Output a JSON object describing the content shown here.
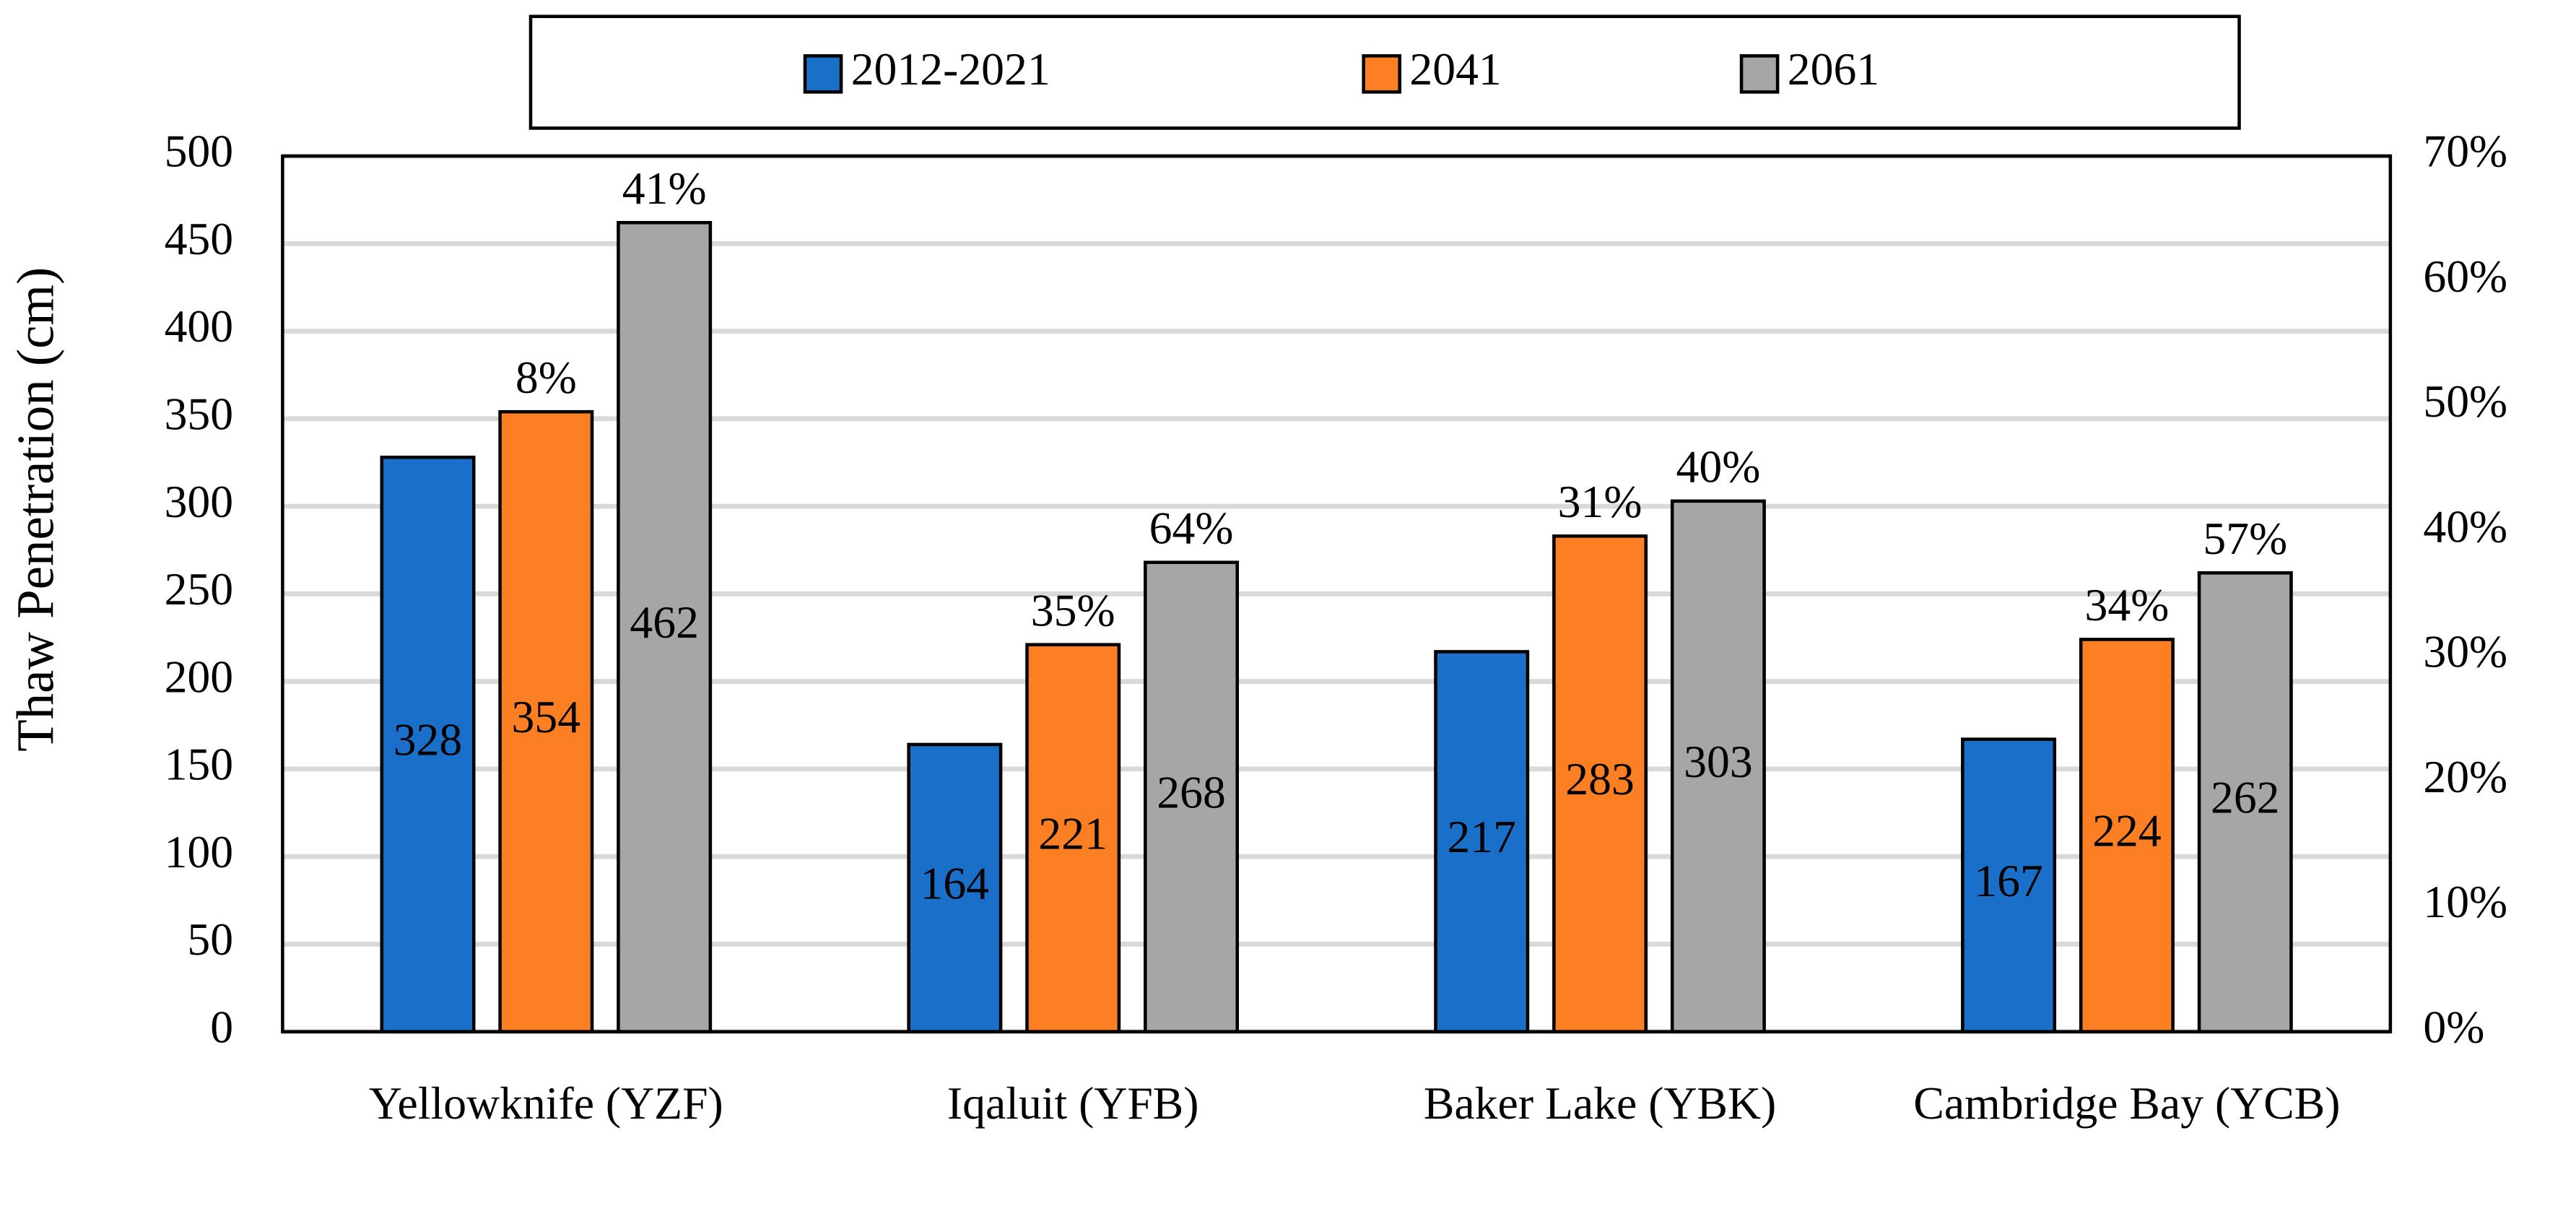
{
  "chart_data": {
    "type": "bar",
    "y_label": "Thaw Penetration (cm)",
    "categories": [
      "Yellowknife (YZF)",
      "Iqaluit (YFB)",
      "Baker Lake (YBK)",
      "Cambridge Bay (YCB)"
    ],
    "series": [
      {
        "name": "2012-2021",
        "color": "#1a70c8",
        "values": [
          328,
          164,
          217,
          167
        ]
      },
      {
        "name": "2041",
        "color": "#fd7f23",
        "values": [
          354,
          221,
          283,
          224
        ],
        "increase_labels": [
          "8%",
          "35%",
          "31%",
          "34%"
        ]
      },
      {
        "name": "2061",
        "color": "#a6a6a6",
        "values": [
          462,
          268,
          303,
          262
        ],
        "increase_labels": [
          "41%",
          "64%",
          "40%",
          "57%"
        ]
      }
    ],
    "ylim": [
      0,
      500
    ],
    "yticks": [
      0,
      50,
      100,
      150,
      200,
      250,
      300,
      350,
      400,
      450,
      500
    ],
    "y2lim": [
      0,
      70
    ],
    "y2ticks": [
      {
        "value": 0,
        "label": "0%"
      },
      {
        "value": 10,
        "label": "10%"
      },
      {
        "value": 20,
        "label": "20%"
      },
      {
        "value": 30,
        "label": "30%"
      },
      {
        "value": 40,
        "label": "40%"
      },
      {
        "value": 50,
        "label": "50%"
      },
      {
        "value": 60,
        "label": "60%"
      },
      {
        "value": 70,
        "label": "70%"
      }
    ],
    "grid": true,
    "legend": "top"
  }
}
